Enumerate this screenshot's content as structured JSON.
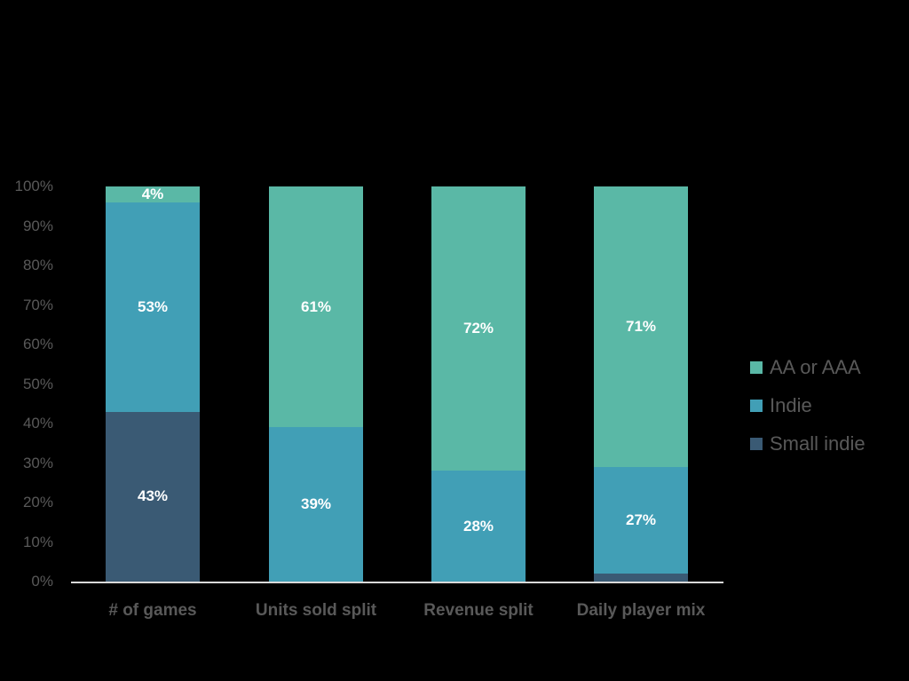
{
  "chart_data": {
    "type": "bar",
    "stacked": true,
    "title": "",
    "xlabel": "",
    "ylabel": "",
    "ylim": [
      0,
      100
    ],
    "yticks": [
      "0%",
      "10%",
      "20%",
      "30%",
      "40%",
      "50%",
      "60%",
      "70%",
      "80%",
      "90%",
      "100%"
    ],
    "categories": [
      "# of games",
      "Units sold split",
      "Revenue split",
      "Daily player mix"
    ],
    "series": [
      {
        "name": "Small indie",
        "color": "#3a5a74",
        "values": [
          43,
          0,
          0,
          2
        ]
      },
      {
        "name": "Indie",
        "color": "#419fb6",
        "values": [
          53,
          39,
          28,
          27
        ]
      },
      {
        "name": "AA or AAA",
        "color": "#5ab8a6",
        "values": [
          4,
          61,
          72,
          71
        ]
      }
    ],
    "legend": {
      "position": "right",
      "entries": [
        "AA or AAA",
        "Indie",
        "Small indie"
      ]
    },
    "grid": false
  }
}
